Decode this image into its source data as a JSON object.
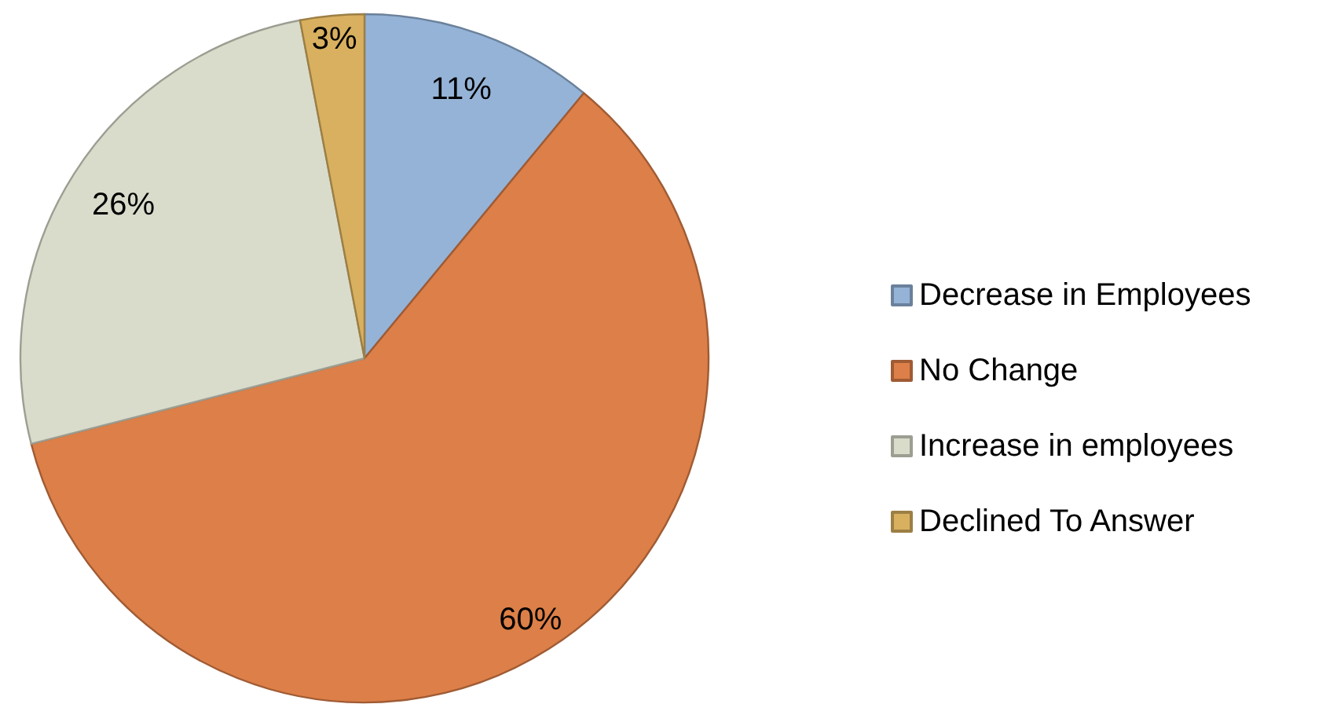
{
  "chart_data": {
    "type": "pie",
    "categories": [
      "Decrease in Employees",
      "No Change",
      "Increase in employees",
      "Declined To Answer"
    ],
    "values": [
      11,
      60,
      26,
      3
    ],
    "colors": [
      "#95b3d7",
      "#dd7f48",
      "#d9dccb",
      "#d8b05f"
    ],
    "value_labels": [
      "11%",
      "60%",
      "26%",
      "3%"
    ],
    "legend": "right"
  }
}
